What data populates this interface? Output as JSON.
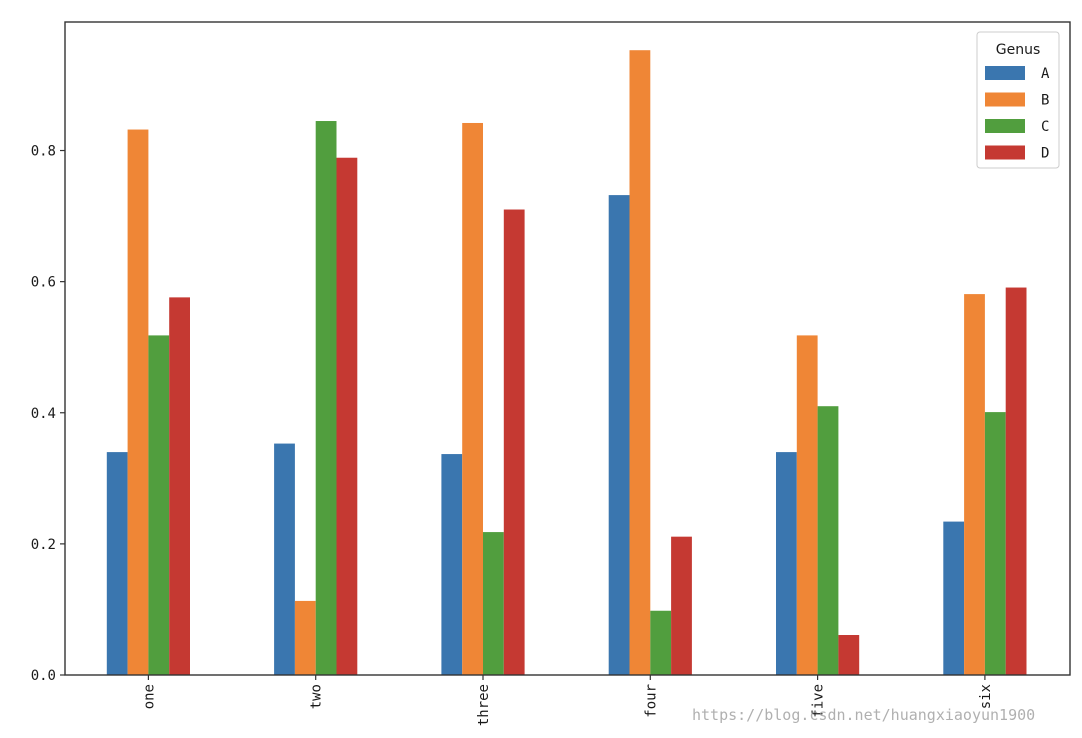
{
  "chart_data": {
    "type": "bar",
    "categories": [
      "one",
      "two",
      "three",
      "four",
      "five",
      "six"
    ],
    "series": [
      {
        "name": "A",
        "color": "#3a76af",
        "values": [
          0.34,
          0.353,
          0.337,
          0.732,
          0.34,
          0.234
        ]
      },
      {
        "name": "B",
        "color": "#ef8636",
        "values": [
          0.832,
          0.113,
          0.842,
          0.953,
          0.518,
          0.581
        ]
      },
      {
        "name": "C",
        "color": "#519e3e",
        "values": [
          0.518,
          0.845,
          0.218,
          0.098,
          0.41,
          0.401
        ]
      },
      {
        "name": "D",
        "color": "#c53932",
        "values": [
          0.576,
          0.789,
          0.71,
          0.211,
          0.061,
          0.591
        ]
      }
    ],
    "legend_title": "Genus",
    "legend_position": "upper right",
    "ylim": [
      0,
      1.0
    ],
    "yticks": [
      "0.0",
      "0.2",
      "0.4",
      "0.6",
      "0.8"
    ],
    "grid": false
  },
  "watermark": "https://blog.csdn.net/huangxiaoyun1900"
}
